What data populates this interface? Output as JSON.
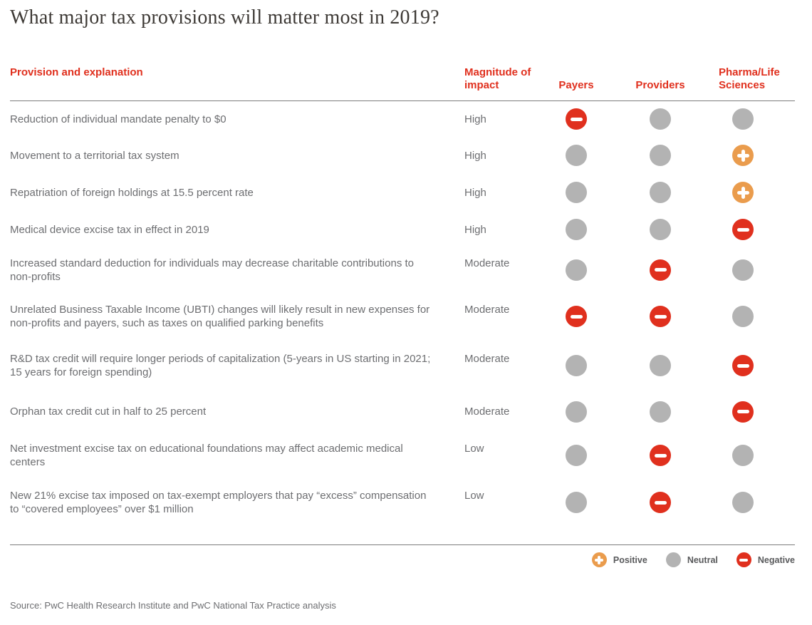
{
  "title": "What major tax provisions will matter most in 2019?",
  "source": "Source: PwC Health Research Institute and PwC National Tax Practice analysis",
  "colors": {
    "negative": "#e0301e",
    "positive": "#ea9c4d",
    "neutral": "#b3b3b3",
    "red": "#e0301e",
    "title": "#3d3935",
    "body": "#6d6e71",
    "line": "#7d7d7d",
    "legend": "#58595b"
  },
  "chart_data": {
    "type": "table",
    "title": "What major tax provisions will matter most in 2019?",
    "columns": [
      "Provision and explanation",
      "Magnitude of impact",
      "Payers",
      "Providers",
      "Pharma/Life Sciences"
    ],
    "rows": [
      {
        "provision": "Reduction of individual mandate penalty to $0",
        "magnitude": "High",
        "payers": "negative",
        "providers": "neutral",
        "pharma": "neutral"
      },
      {
        "provision": "Movement to a territorial tax system",
        "magnitude": "High",
        "payers": "neutral",
        "providers": "neutral",
        "pharma": "positive"
      },
      {
        "provision": "Repatriation of foreign holdings at 15.5 percent rate",
        "magnitude": "High",
        "payers": "neutral",
        "providers": "neutral",
        "pharma": "positive"
      },
      {
        "provision": "Medical device excise tax in effect in 2019",
        "magnitude": "High",
        "payers": "neutral",
        "providers": "neutral",
        "pharma": "negative"
      },
      {
        "provision": "Increased standard deduction for individuals may decrease charitable contributions to non-profits",
        "magnitude": "Moderate",
        "payers": "neutral",
        "providers": "negative",
        "pharma": "neutral"
      },
      {
        "provision": "Unrelated Business Taxable Income (UBTI) changes will likely result in new expenses for non-profits and payers, such as taxes on qualified parking benefits",
        "magnitude": "Moderate",
        "payers": "negative",
        "providers": "negative",
        "pharma": "neutral"
      },
      {
        "provision": "R&D tax credit will require longer periods of capitalization (5-years in US starting in 2021; 15 years for foreign spending)",
        "magnitude": "Moderate",
        "payers": "neutral",
        "providers": "neutral",
        "pharma": "negative"
      },
      {
        "provision": "Orphan tax credit cut in half to 25 percent",
        "magnitude": "Moderate",
        "payers": "neutral",
        "providers": "neutral",
        "pharma": "negative"
      },
      {
        "provision": "Net investment excise tax on educational foundations may affect academic medical centers",
        "magnitude": "Low",
        "payers": "neutral",
        "providers": "negative",
        "pharma": "neutral"
      },
      {
        "provision": "New 21% excise tax imposed on tax-exempt employers that pay “excess” compensation to “covered employees” over $1 million",
        "magnitude": "Low",
        "payers": "neutral",
        "providers": "negative",
        "pharma": "neutral"
      }
    ],
    "legend": [
      {
        "label": "Positive",
        "type": "positive"
      },
      {
        "label": "Neutral",
        "type": "neutral"
      },
      {
        "label": "Negative",
        "type": "negative"
      }
    ],
    "layout": {
      "grid": "off",
      "legend_position": "bottom-right"
    }
  }
}
